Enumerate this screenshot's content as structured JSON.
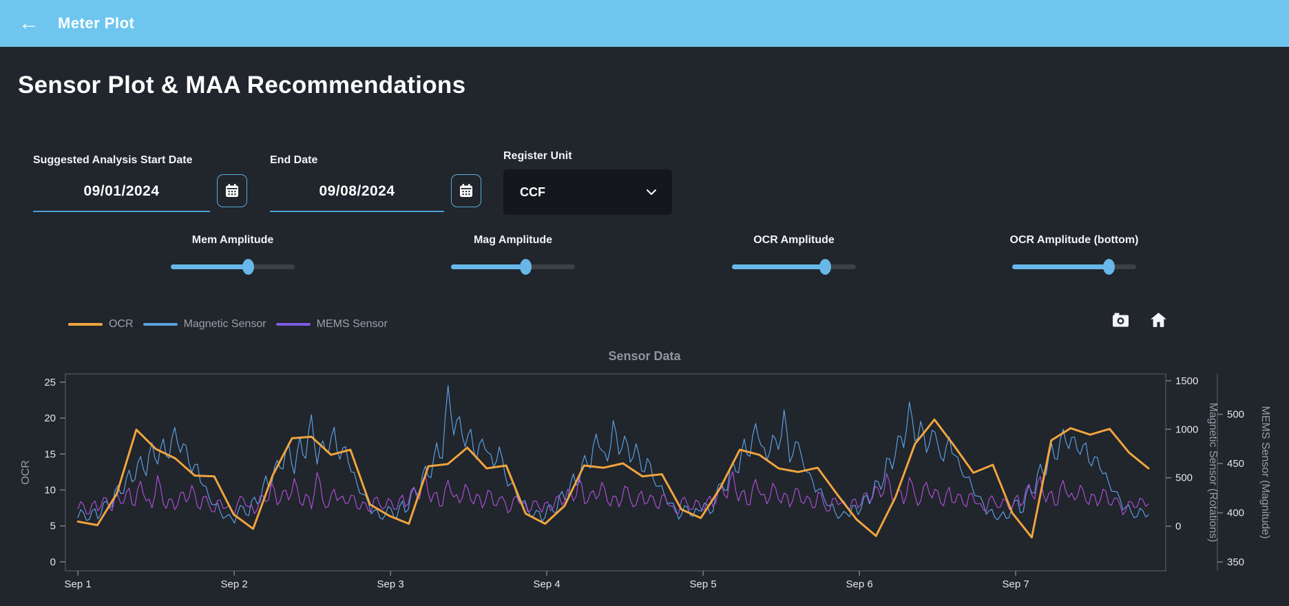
{
  "header": {
    "title": "Meter Plot",
    "back_icon": "left-arrow"
  },
  "page": {
    "heading": "Sensor Plot & MAA Recommendations"
  },
  "controls": {
    "start_date": {
      "label": "Suggested Analysis Start Date",
      "value": "09/01/2024"
    },
    "end_date": {
      "label": "End Date",
      "value": "09/08/2024"
    },
    "register_unit": {
      "label": "Register Unit",
      "value": "CCF"
    }
  },
  "sliders": {
    "items": [
      {
        "label": "Mem Amplitude",
        "value_pct": 62
      },
      {
        "label": "Mag Amplitude",
        "value_pct": 60
      },
      {
        "label": "OCR Amplitude",
        "value_pct": 75
      },
      {
        "label": "OCR Amplitude (bottom)",
        "value_pct": 78
      }
    ]
  },
  "toolbar": {
    "buttons": [
      "camera",
      "home"
    ]
  },
  "colors": {
    "header_bg": "#6ec6ef",
    "accent_blue": "#5aaede",
    "background": "#21252c",
    "panel": "#14171c",
    "ocr": "#f0a53e",
    "magnetic": "#5b9fe0",
    "mems_line": "#a94fd2",
    "mems_legend": "#7d5ce0"
  },
  "chart_data": {
    "type": "line",
    "title": "Sensor Data",
    "legend_position": "top-left",
    "grid": false,
    "x_ticks": [
      "Sep 1",
      "Sep 2",
      "Sep 3",
      "Sep 4",
      "Sep 5",
      "Sep 6",
      "Sep 7"
    ],
    "x_range_days": [
      -0.08,
      6.96
    ],
    "t_span": 6.85,
    "axes": {
      "ocr": {
        "title": "OCR",
        "side": "left",
        "ticks": [
          0,
          5,
          10,
          15,
          20,
          25
        ],
        "range": [
          -1.26,
          26.15
        ]
      },
      "mag": {
        "title": "Magnetic Sensor (Rotations)",
        "side": "right",
        "ticks": [
          0,
          500,
          1000,
          1500
        ],
        "range": [
          -460,
          1570
        ]
      },
      "mems": {
        "title": "MEMS Sensor (Magnitude)",
        "side": "right-outer",
        "ticks": [
          350,
          400,
          450,
          500
        ],
        "range": [
          341,
          541
        ]
      }
    },
    "series": [
      {
        "name": "OCR",
        "axis": "ocr",
        "color": "#f0a53e",
        "width": 3,
        "noisy": false,
        "values": [
          5.6,
          5.1,
          9.5,
          18.4,
          15.7,
          14.4,
          12.0,
          11.9,
          6.6,
          4.6,
          12.0,
          17.2,
          17.4,
          14.9,
          15.6,
          8.0,
          6.4,
          5.3,
          13.3,
          13.6,
          15.9,
          13.0,
          13.4,
          6.7,
          5.3,
          7.8,
          13.4,
          13.1,
          13.7,
          11.9,
          12.2,
          7.3,
          6.1,
          10.3,
          15.6,
          14.9,
          13.0,
          12.5,
          13.1,
          9.4,
          5.9,
          3.6,
          9.0,
          16.4,
          19.8,
          16.2,
          12.4,
          13.5,
          6.8,
          3.4,
          16.9,
          18.6,
          17.7,
          18.5,
          15.2,
          13.0
        ]
      },
      {
        "name": "Magnetic Sensor",
        "axis": "mag",
        "color": "#5b9fe0",
        "width": 1.2,
        "noisy": true,
        "values": [
          90,
          140,
          70,
          180,
          120,
          260,
          200,
          420,
          340,
          580,
          480,
          720,
          520,
          860,
          640,
          900,
          700,
          1020,
          760,
          830,
          560,
          640,
          420,
          300,
          220,
          150,
          100,
          80,
          130,
          200,
          110,
          300,
          250,
          520,
          430,
          680,
          590,
          860,
          540,
          920,
          700,
          1150,
          640,
          880,
          760,
          1020,
          690,
          820,
          560,
          440,
          330,
          240,
          160,
          90,
          120,
          180,
          90,
          260,
          170,
          400,
          330,
          620,
          500,
          860,
          700,
          1450,
          940,
          1130,
          820,
          1000,
          690,
          900,
          760,
          610,
          820,
          530,
          440,
          330,
          250,
          170,
          110,
          150,
          90,
          220,
          140,
          360,
          280,
          540,
          450,
          730,
          600,
          950,
          780,
          670,
          1090,
          740,
          930,
          660,
          850,
          570,
          700,
          490,
          410,
          320,
          240,
          170,
          120,
          200,
          100,
          160,
          240,
          130,
          320,
          440,
          370,
          670,
          550,
          900,
          720,
          1060,
          830,
          680,
          940,
          790,
          1200,
          660,
          870,
          740,
          560,
          470,
          380,
          290,
          210,
          140,
          110,
          130,
          210,
          120,
          300,
          230,
          470,
          380,
          700,
          590,
          930,
          810,
          1280,
          880,
          1080,
          760,
          990,
          840,
          670,
          920,
          730,
          590,
          500,
          410,
          310,
          230,
          160,
          90,
          110,
          80,
          190,
          270,
          150,
          420,
          340,
          640,
          530,
          850,
          690,
          1000,
          800,
          920,
          740,
          860,
          620,
          710,
          540,
          450,
          360,
          280,
          200,
          140,
          100,
          160,
          120
        ]
      },
      {
        "name": "MEMS Sensor",
        "axis": "mems",
        "color": "#a94fd2",
        "legend_color": "#7d5ce0",
        "width": 1.2,
        "noisy": true,
        "values": [
          404,
          408,
          399,
          412,
          406,
          415,
          402,
          418,
          410,
          425,
          407,
          432,
          412,
          405,
          438,
          409,
          414,
          403,
          420,
          411,
          428,
          406,
          416,
          408,
          401,
          413,
          405,
          403,
          409,
          415,
          406,
          399,
          417,
          411,
          430,
          408,
          422,
          413,
          435,
          410,
          419,
          404,
          441,
          412,
          407,
          424,
          415,
          409,
          418,
          405,
          411,
          402,
          414,
          408,
          406,
          412,
          404,
          418,
          409,
          426,
          414,
          439,
          411,
          421,
          407,
          433,
          416,
          410,
          429,
          413,
          419,
          405,
          423,
          408,
          415,
          411,
          403,
          417,
          409,
          401,
          412,
          405,
          410,
          402,
          416,
          408,
          424,
          412,
          436,
          409,
          420,
          414,
          431,
          411,
          417,
          406,
          427,
          413,
          408,
          422,
          410,
          416,
          404,
          419,
          407,
          400,
          413,
          409,
          404,
          411,
          403,
          417,
          410,
          428,
          415,
          442,
          412,
          423,
          408,
          434,
          418,
          409,
          430,
          414,
          420,
          406,
          425,
          411,
          417,
          405,
          421,
          408,
          402,
          415,
          410,
          407,
          413,
          405,
          419,
          411,
          427,
          416,
          440,
          413,
          424,
          409,
          436,
          417,
          412,
          431,
          415,
          422,
          407,
          426,
          410,
          418,
          406,
          420,
          409,
          403,
          414,
          411,
          406,
          412,
          404,
          418,
          410,
          429,
          414,
          437,
          411,
          422,
          408,
          433,
          416,
          413,
          428,
          412,
          419,
          407,
          424,
          409,
          415,
          408,
          402,
          411,
          406,
          413,
          409
        ]
      }
    ]
  }
}
